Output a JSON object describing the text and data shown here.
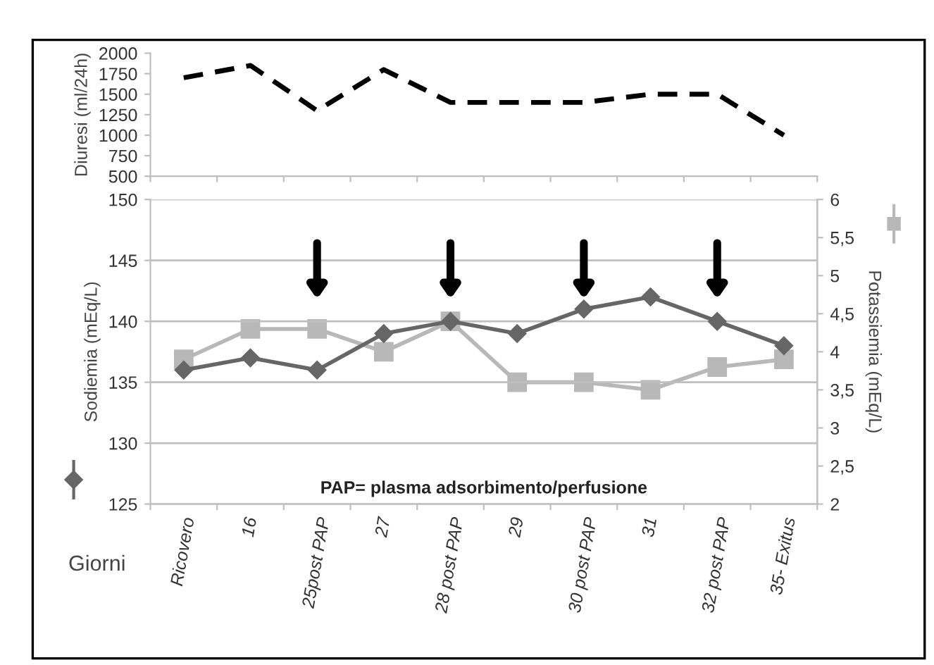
{
  "chart_data": [
    {
      "type": "line",
      "ylabel": "Diuresi (ml/24h)",
      "categories": [
        null,
        null,
        null,
        null,
        null,
        null,
        null,
        null,
        null,
        null
      ],
      "series": [
        {
          "color": "#000000",
          "values": [
            1700,
            1850,
            1300,
            1800,
            1400,
            1400,
            1400,
            1500,
            1500,
            1000
          ],
          "line_style": "dashed",
          "marker": "none"
        }
      ],
      "ylim": [
        500,
        2000
      ],
      "yticks": [
        500,
        750,
        1000,
        1250,
        1500,
        1750,
        2000
      ],
      "tick_labels": "y",
      "grid": false,
      "legend": false
    },
    {
      "type": "line",
      "ylabel": "Sodiemia (mEq/L)",
      "y2label": "Potassiemia (mEq/L)",
      "xlabel": "Giorni",
      "categories": [
        "Ricovero",
        "16",
        "25post PAP",
        "27",
        "28 post PAP",
        "29",
        "30 post PAP",
        "31",
        "32 post PAP",
        "35- Exitus"
      ],
      "series": [
        {
          "color": "#666666",
          "values": [
            136,
            137,
            136,
            139,
            140,
            139,
            141,
            142,
            140,
            138
          ],
          "marker": "diamond",
          "line_style": "solid"
        },
        {
          "color": "#b8b8b8",
          "values": [
            3.9,
            4.3,
            4.3,
            4.0,
            4.4,
            3.6,
            3.6,
            3.5,
            3.8,
            3.9
          ],
          "marker": "square",
          "line_style": "solid",
          "axis": "y2"
        }
      ],
      "ylim": [
        125,
        150
      ],
      "yticks": [
        125,
        130,
        135,
        140,
        145,
        150
      ],
      "y2lim": [
        2,
        6
      ],
      "y2ticks": [
        2,
        {
          "value": 2.5,
          "label": "2,5"
        },
        3,
        {
          "value": 3.5,
          "label": "3,5"
        },
        4,
        {
          "value": 4.5,
          "label": "4,5"
        },
        5,
        {
          "value": 5.5,
          "label": "5,5"
        },
        6
      ],
      "grid": "y",
      "legend": false,
      "annotations": [
        "PAP= plasma adsorbimento/perfusione"
      ]
    }
  ]
}
